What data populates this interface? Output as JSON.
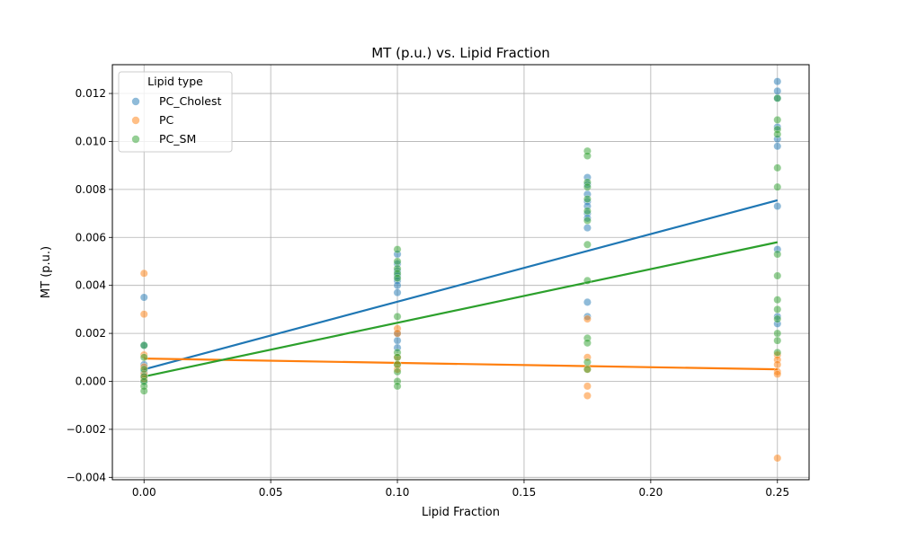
{
  "chart_data": {
    "type": "scatter",
    "title": "MT (p.u.) vs. Lipid Fraction",
    "xlabel": "Lipid Fraction",
    "ylabel": "MT (p.u.)",
    "xlim": [
      -0.0125,
      0.2625
    ],
    "ylim": [
      -0.0041,
      0.0132
    ],
    "xticks": [
      0.0,
      0.05,
      0.1,
      0.15,
      0.2,
      0.25
    ],
    "xtick_labels": [
      "0.00",
      "0.05",
      "0.10",
      "0.15",
      "0.20",
      "0.25"
    ],
    "yticks": [
      -0.004,
      -0.002,
      0.0,
      0.002,
      0.004,
      0.006,
      0.008,
      0.01,
      0.012
    ],
    "ytick_labels": [
      "−0.004",
      "−0.002",
      "0.000",
      "0.002",
      "0.004",
      "0.006",
      "0.008",
      "0.010",
      "0.012"
    ],
    "grid": true,
    "legend": {
      "title": "Lipid type",
      "placement": "top-left"
    },
    "series": [
      {
        "name": "PC_Cholest",
        "color": "#1f77b4",
        "points": [
          [
            0.0,
            0.0035
          ],
          [
            0.0,
            0.0015
          ],
          [
            0.0,
            0.0007
          ],
          [
            0.0,
            0.0004
          ],
          [
            0.0,
            0.0002
          ],
          [
            0.0,
            0.0
          ],
          [
            0.1,
            0.0053
          ],
          [
            0.1,
            0.0049
          ],
          [
            0.1,
            0.0046
          ],
          [
            0.1,
            0.0044
          ],
          [
            0.1,
            0.0042
          ],
          [
            0.1,
            0.004
          ],
          [
            0.1,
            0.0037
          ],
          [
            0.1,
            0.002
          ],
          [
            0.1,
            0.0017
          ],
          [
            0.1,
            0.0014
          ],
          [
            0.175,
            0.0085
          ],
          [
            0.175,
            0.0082
          ],
          [
            0.175,
            0.0078
          ],
          [
            0.175,
            0.0075
          ],
          [
            0.175,
            0.0073
          ],
          [
            0.175,
            0.007
          ],
          [
            0.175,
            0.0068
          ],
          [
            0.175,
            0.0064
          ],
          [
            0.175,
            0.0033
          ],
          [
            0.175,
            0.0027
          ],
          [
            0.25,
            0.0125
          ],
          [
            0.25,
            0.0121
          ],
          [
            0.25,
            0.0118
          ],
          [
            0.25,
            0.0106
          ],
          [
            0.25,
            0.0101
          ],
          [
            0.25,
            0.0098
          ],
          [
            0.25,
            0.0073
          ],
          [
            0.25,
            0.0055
          ],
          [
            0.25,
            0.0027
          ],
          [
            0.25,
            0.0024
          ]
        ],
        "fit": {
          "x": [
            0.0,
            0.25
          ],
          "y": [
            0.0005,
            0.00755
          ]
        }
      },
      {
        "name": "PC",
        "color": "#ff7f0e",
        "points": [
          [
            0.0,
            0.0045
          ],
          [
            0.0,
            0.0028
          ],
          [
            0.0,
            0.0011
          ],
          [
            0.0,
            0.0006
          ],
          [
            0.0,
            0.0003
          ],
          [
            0.0,
            0.0001
          ],
          [
            0.1,
            0.0022
          ],
          [
            0.1,
            0.002
          ],
          [
            0.1,
            0.001
          ],
          [
            0.1,
            0.0007
          ],
          [
            0.1,
            0.0005
          ],
          [
            0.175,
            0.0026
          ],
          [
            0.175,
            0.001
          ],
          [
            0.175,
            0.0005
          ],
          [
            0.175,
            -0.0002
          ],
          [
            0.175,
            -0.0006
          ],
          [
            0.25,
            0.0011
          ],
          [
            0.25,
            0.0009
          ],
          [
            0.25,
            0.0007
          ],
          [
            0.25,
            0.0004
          ],
          [
            0.25,
            0.0003
          ],
          [
            0.25,
            -0.0032
          ]
        ],
        "fit": {
          "x": [
            0.0,
            0.25
          ],
          "y": [
            0.00095,
            0.0005
          ]
        }
      },
      {
        "name": "PC_SM",
        "color": "#2ca02c",
        "points": [
          [
            0.0,
            0.0015
          ],
          [
            0.0,
            0.001
          ],
          [
            0.0,
            0.0005
          ],
          [
            0.0,
            0.0002
          ],
          [
            0.0,
            0.0
          ],
          [
            0.0,
            -0.0002
          ],
          [
            0.0,
            -0.0004
          ],
          [
            0.1,
            0.0055
          ],
          [
            0.1,
            0.005
          ],
          [
            0.1,
            0.0047
          ],
          [
            0.1,
            0.0045
          ],
          [
            0.1,
            0.0043
          ],
          [
            0.1,
            0.0027
          ],
          [
            0.1,
            0.0012
          ],
          [
            0.1,
            0.001
          ],
          [
            0.1,
            0.0007
          ],
          [
            0.1,
            0.0004
          ],
          [
            0.1,
            0.0
          ],
          [
            0.1,
            -0.0002
          ],
          [
            0.175,
            0.0096
          ],
          [
            0.175,
            0.0094
          ],
          [
            0.175,
            0.0083
          ],
          [
            0.175,
            0.0081
          ],
          [
            0.175,
            0.0076
          ],
          [
            0.175,
            0.0071
          ],
          [
            0.175,
            0.0067
          ],
          [
            0.175,
            0.0057
          ],
          [
            0.175,
            0.0042
          ],
          [
            0.175,
            0.0018
          ],
          [
            0.175,
            0.0016
          ],
          [
            0.175,
            0.0008
          ],
          [
            0.175,
            0.0005
          ],
          [
            0.25,
            0.0118
          ],
          [
            0.25,
            0.0109
          ],
          [
            0.25,
            0.0105
          ],
          [
            0.25,
            0.0103
          ],
          [
            0.25,
            0.0089
          ],
          [
            0.25,
            0.0081
          ],
          [
            0.25,
            0.0053
          ],
          [
            0.25,
            0.0044
          ],
          [
            0.25,
            0.0034
          ],
          [
            0.25,
            0.003
          ],
          [
            0.25,
            0.0026
          ],
          [
            0.25,
            0.002
          ],
          [
            0.25,
            0.0017
          ],
          [
            0.25,
            0.0012
          ]
        ],
        "fit": {
          "x": [
            0.0,
            0.25
          ],
          "y": [
            0.0002,
            0.0058
          ]
        }
      }
    ]
  }
}
